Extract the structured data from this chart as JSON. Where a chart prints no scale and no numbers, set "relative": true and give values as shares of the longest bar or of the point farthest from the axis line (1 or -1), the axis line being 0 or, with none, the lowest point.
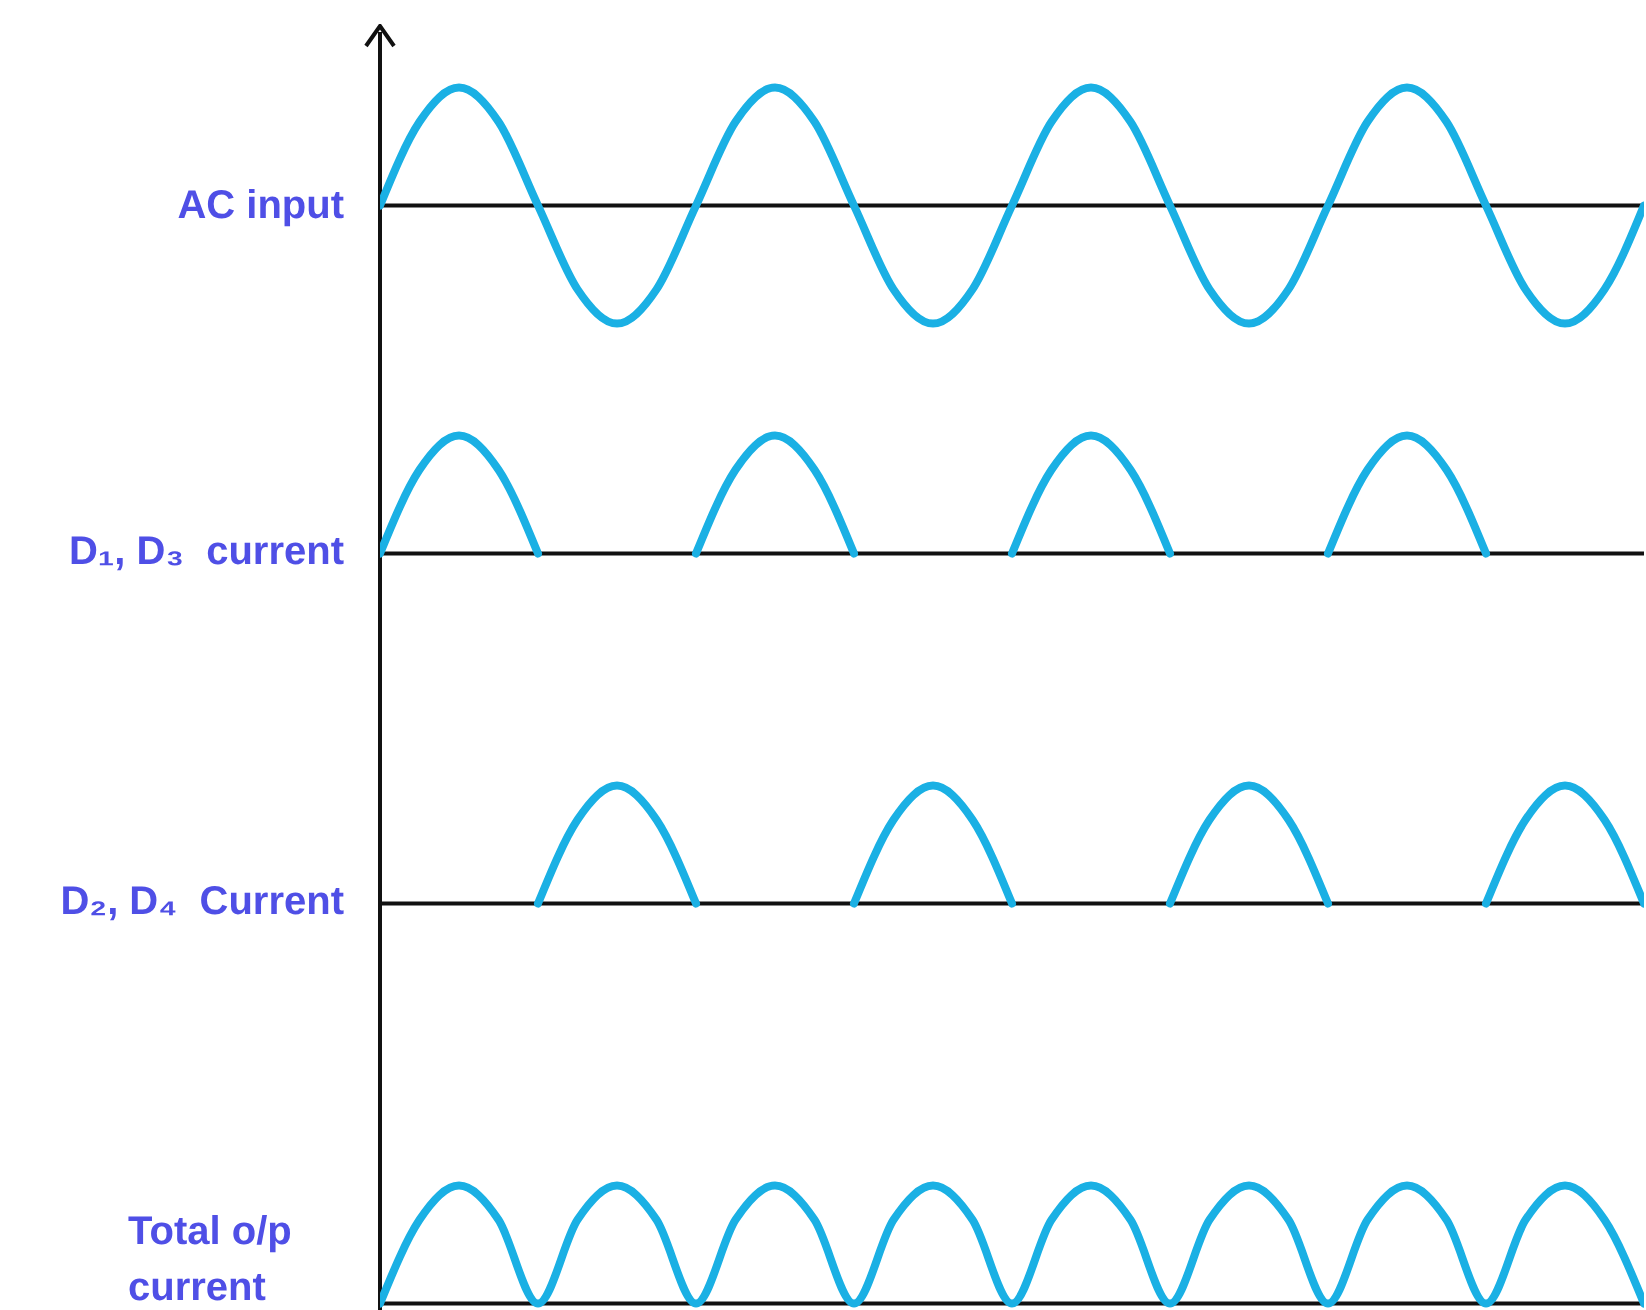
{
  "chart_data": [
    {
      "type": "line",
      "ylabel": "AC input",
      "relative": true,
      "categories": [
        null,
        null,
        null,
        null,
        null,
        null,
        null,
        null,
        null,
        null,
        null,
        null,
        null,
        null,
        null,
        null,
        null,
        null,
        null,
        null,
        null,
        null,
        null,
        null,
        null,
        null,
        null,
        null,
        null,
        null,
        null,
        null,
        null
      ],
      "series": [
        {
          "color": "#1ab0e4",
          "values": [
            0,
            0.71,
            1,
            0.71,
            0,
            -0.71,
            -1,
            -0.71,
            0,
            0.71,
            1,
            0.71,
            0,
            -0.71,
            -1,
            -0.71,
            0,
            0.71,
            1,
            0.71,
            0,
            -0.71,
            -1,
            -0.71,
            0,
            0.71,
            1,
            0.71,
            0,
            -0.71,
            -1,
            -0.71,
            0
          ]
        }
      ]
    },
    {
      "type": "line",
      "ylabel": "D₁, D₃  current",
      "relative": true,
      "categories": [
        null,
        null,
        null,
        null,
        null,
        null,
        null,
        null,
        null,
        null,
        null,
        null,
        null,
        null,
        null,
        null,
        null,
        null,
        null,
        null,
        null,
        null,
        null,
        null,
        null,
        null,
        null,
        null,
        null,
        null,
        null,
        null,
        null
      ],
      "series": [
        {
          "color": "#1ab0e4",
          "values": [
            0,
            0.71,
            1,
            0.71,
            0,
            null,
            null,
            null,
            0,
            0.71,
            1,
            0.71,
            0,
            null,
            null,
            null,
            0,
            0.71,
            1,
            0.71,
            0,
            null,
            null,
            null,
            0,
            0.71,
            1,
            0.71,
            0,
            null,
            null,
            null,
            null
          ]
        }
      ]
    },
    {
      "type": "line",
      "ylabel": "D₂, D₄  Current",
      "relative": true,
      "categories": [
        null,
        null,
        null,
        null,
        null,
        null,
        null,
        null,
        null,
        null,
        null,
        null,
        null,
        null,
        null,
        null,
        null,
        null,
        null,
        null,
        null,
        null,
        null,
        null,
        null,
        null,
        null,
        null,
        null,
        null,
        null,
        null,
        null
      ],
      "series": [
        {
          "color": "#1ab0e4",
          "values": [
            null,
            null,
            null,
            null,
            0,
            0.71,
            1,
            0.71,
            0,
            null,
            null,
            null,
            0,
            0.71,
            1,
            0.71,
            0,
            null,
            null,
            null,
            0,
            0.71,
            1,
            0.71,
            0,
            null,
            null,
            null,
            0,
            0.71,
            1,
            0.71,
            0
          ]
        }
      ]
    },
    {
      "type": "line",
      "ylabel": "Total o/p current",
      "relative": true,
      "categories": [
        null,
        null,
        null,
        null,
        null,
        null,
        null,
        null,
        null,
        null,
        null,
        null,
        null,
        null,
        null,
        null,
        null,
        null,
        null,
        null,
        null,
        null,
        null,
        null,
        null,
        null,
        null,
        null,
        null,
        null,
        null,
        null,
        null
      ],
      "series": [
        {
          "color": "#1ab0e4",
          "values": [
            0,
            0.71,
            1,
            0.71,
            0,
            0.71,
            1,
            0.71,
            0,
            0.71,
            1,
            0.71,
            0,
            0.71,
            1,
            0.71,
            0,
            0.71,
            1,
            0.71,
            0,
            0.71,
            1,
            0.71,
            0,
            0.71,
            1,
            0.71,
            0,
            0.71,
            1,
            0.71,
            0
          ]
        }
      ]
    }
  ]
}
